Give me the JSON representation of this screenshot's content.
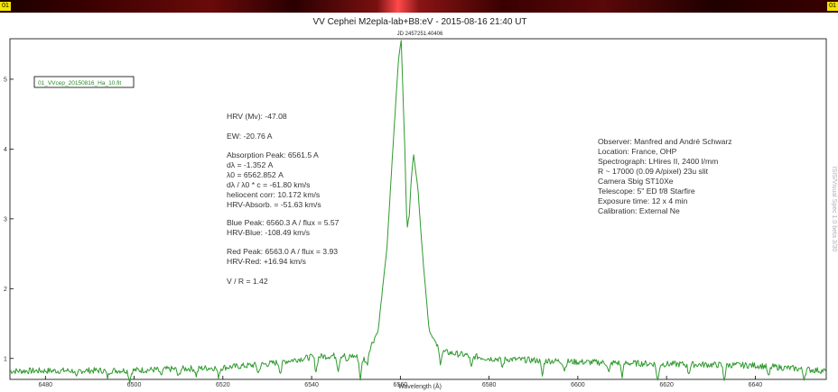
{
  "corners": {
    "left": "01",
    "right": "01"
  },
  "chart_data": {
    "type": "line",
    "title": "VV Cephei M2epla-lab+B8:eV - 2015-08-16 21:40 UT",
    "subtitle": "JD 2457251.40406",
    "xlabel": "Wavelength (Å)",
    "ylabel": "",
    "xlim": [
      6472,
      6656
    ],
    "ylim": [
      0.7,
      5.58
    ],
    "x_ticks": [
      6480,
      6500,
      6520,
      6540,
      6560,
      6580,
      6600,
      6620,
      6640
    ],
    "y_ticks": [
      1,
      2,
      3,
      4,
      5
    ],
    "grid": false,
    "legend_position": "top-left",
    "series": [
      {
        "name": "01_VVcep_20150816_Ha_10.fit",
        "color": "#2e9a2e",
        "anchors": [
          [
            6472,
            0.82
          ],
          [
            6500,
            0.83
          ],
          [
            6520,
            0.87
          ],
          [
            6530,
            0.92
          ],
          [
            6540,
            1.02
          ],
          [
            6548,
            1.05
          ],
          [
            6552,
            1.0
          ],
          [
            6555,
            1.4
          ],
          [
            6557,
            2.6
          ],
          [
            6558.5,
            4.2
          ],
          [
            6559.6,
            5.3
          ],
          [
            6560.2,
            5.57
          ],
          [
            6561.0,
            4.0
          ],
          [
            6561.5,
            2.85
          ],
          [
            6562.0,
            3.05
          ],
          [
            6562.5,
            3.6
          ],
          [
            6563.0,
            3.93
          ],
          [
            6564.0,
            3.4
          ],
          [
            6565.0,
            2.5
          ],
          [
            6566.5,
            1.4
          ],
          [
            6569,
            1.1
          ],
          [
            6580,
            1.0
          ],
          [
            6600,
            0.95
          ],
          [
            6620,
            0.92
          ],
          [
            6640,
            0.9
          ],
          [
            6656,
            0.82
          ]
        ],
        "absorption_dips": [
          [
            6487,
            0.12
          ],
          [
            6494,
            0.1
          ],
          [
            6499,
            0.15
          ],
          [
            6506,
            0.1
          ],
          [
            6510,
            0.12
          ],
          [
            6514,
            0.1
          ],
          [
            6519,
            0.12
          ],
          [
            6528,
            0.12
          ],
          [
            6533,
            0.15
          ],
          [
            6541,
            0.2
          ],
          [
            6546,
            0.2
          ],
          [
            6548,
            0.12
          ],
          [
            6551,
            0.3
          ],
          [
            6552.5,
            0.15
          ],
          [
            6569,
            0.15
          ],
          [
            6576,
            0.18
          ],
          [
            6583,
            0.12
          ],
          [
            6592,
            0.22
          ],
          [
            6597,
            0.12
          ],
          [
            6607,
            0.15
          ],
          [
            6610,
            0.18
          ],
          [
            6618,
            0.25
          ],
          [
            6625,
            0.12
          ],
          [
            6633,
            0.2
          ],
          [
            6643,
            0.16
          ],
          [
            6651,
            0.12
          ]
        ]
      }
    ]
  },
  "annotations": [
    "HRV (Mv): -47.08",
    "EW: -20.76 A",
    "Absorption Peak: 6561.5 A",
    "dλ = -1.352 A",
    "λ0 = 6562.852 A",
    "dλ / λ0 * c = -61.80 km/s",
    "heliocent corr: 10.172 km/s",
    "HRV-Absorb. = -51.63 km/s",
    "Blue Peak: 6560.3 A / flux = 5.57",
    "HRV-Blue: -108.49 km/s",
    "Red Peak: 6563.0 A / flux = 3.93",
    "HRV-Red: +16.94 km/s",
    "V / R = 1.42"
  ],
  "observer_info": [
    "Observer: Manfred and André Schwarz",
    "Location: France, OHP",
    "Spectrograph: LHires II, 2400 l/mm",
    "R ~ 17000 (0.09 A/pixel) 23u slit",
    "Camera Sbig ST10Xe",
    "Telescope: 5\" ED f/8 Starfire",
    "Exposure time: 12 x 4 min",
    "Calibration: External Ne"
  ],
  "side_text": "ISIS/Visual Spec 1.0 beta 3/30"
}
